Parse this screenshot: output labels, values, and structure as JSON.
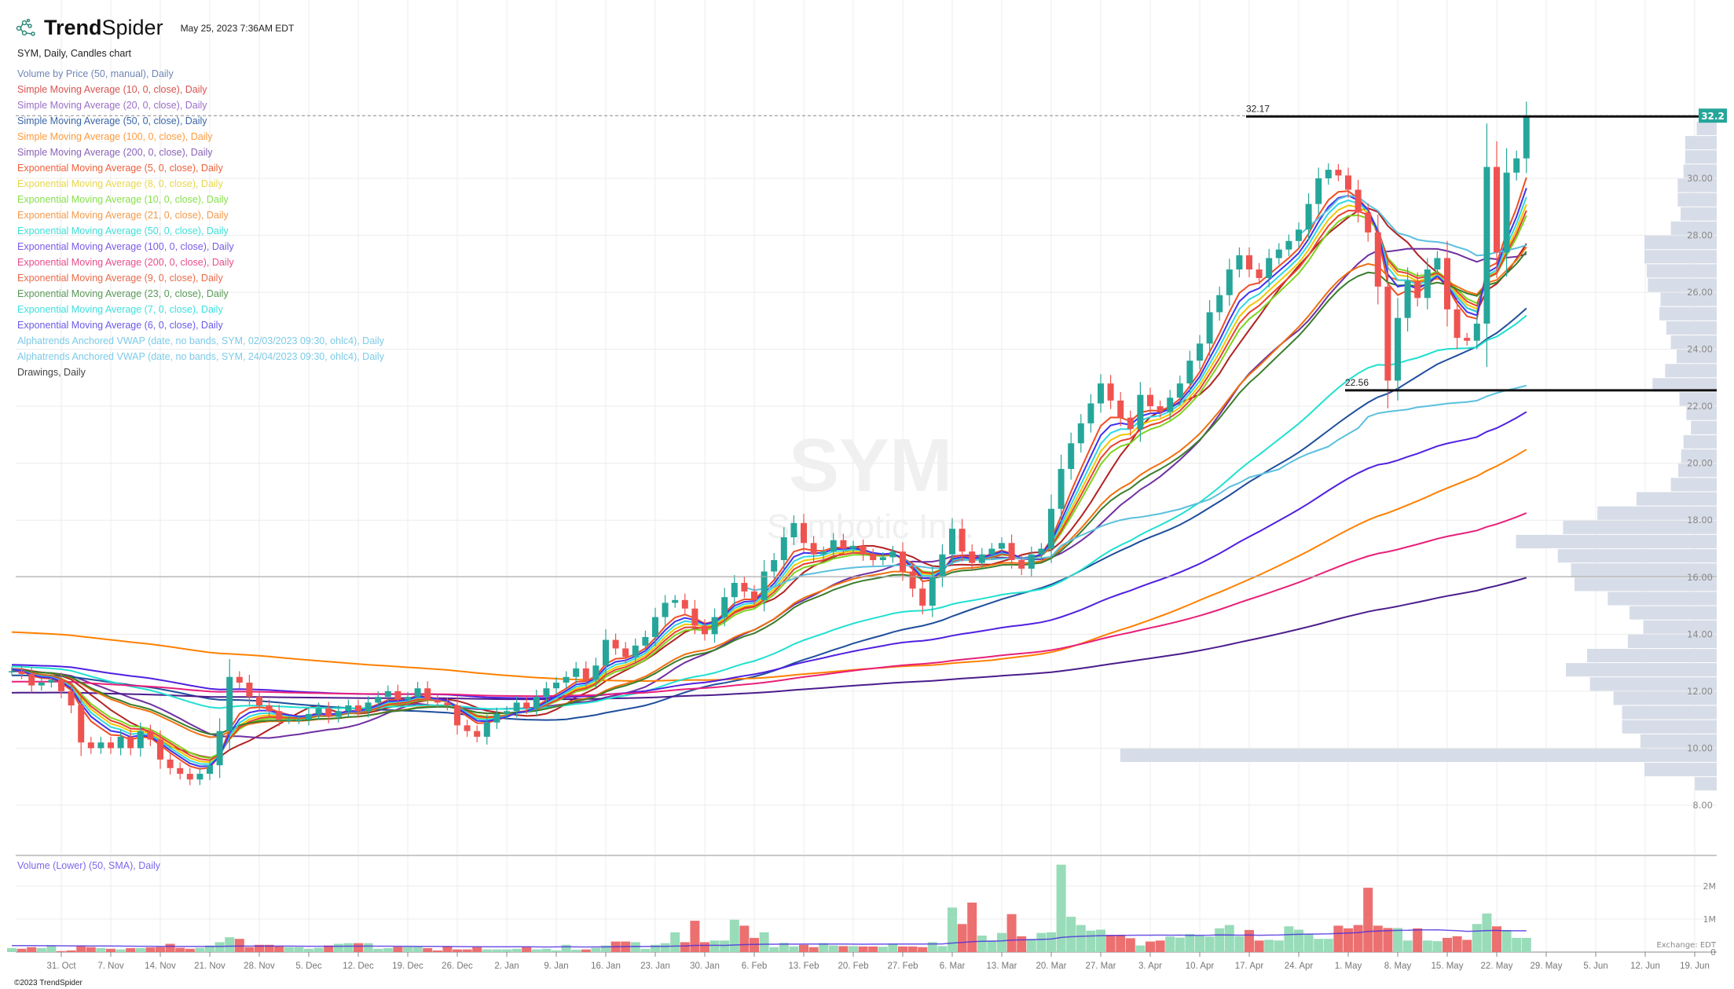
{
  "header": {
    "brand_bold": "Trend",
    "brand_regular": "Spider",
    "timestamp": "May 25, 2023 7:36AM EDT",
    "chart_title": "SYM, Daily, Candles chart"
  },
  "legend": [
    {
      "label": "Volume by Price (50, manual), Daily",
      "color": "#6f86b8"
    },
    {
      "label": "Simple Moving Average (10, 0, close), Daily",
      "color": "#d9534f"
    },
    {
      "label": "Simple Moving Average (20, 0, close), Daily",
      "color": "#9b6fc8"
    },
    {
      "label": "Simple Moving Average (50, 0, close), Daily",
      "color": "#3a66a8"
    },
    {
      "label": "Simple Moving Average (100, 0, close), Daily",
      "color": "#ff9a3c"
    },
    {
      "label": "Simple Moving Average (200, 0, close), Daily",
      "color": "#8a63b8"
    },
    {
      "label": "Exponential Moving Average (5, 0, close), Daily",
      "color": "#f0603a"
    },
    {
      "label": "Exponential Moving Average (8, 0, close), Daily",
      "color": "#e8d84a"
    },
    {
      "label": "Exponential Moving Average (10, 0, close), Daily",
      "color": "#86e04a"
    },
    {
      "label": "Exponential Moving Average (21, 0, close), Daily",
      "color": "#f59a4a"
    },
    {
      "label": "Exponential Moving Average (50, 0, close), Daily",
      "color": "#3ee0d8"
    },
    {
      "label": "Exponential Moving Average (100, 0, close), Daily",
      "color": "#7a5ae8"
    },
    {
      "label": "Exponential Moving Average (200, 0, close), Daily",
      "color": "#ea4c8c"
    },
    {
      "label": "Exponential Moving Average (9, 0, close), Daily",
      "color": "#ec6a4a"
    },
    {
      "label": "Exponential Moving Average (23, 0, close), Daily",
      "color": "#5a9a5a"
    },
    {
      "label": "Exponential Moving Average (7, 0, close), Daily",
      "color": "#3ee0e0"
    },
    {
      "label": "Exponential Moving Average (6, 0, close), Daily",
      "color": "#6a5ae8"
    },
    {
      "label": "Alphatrends Anchored VWAP (date, no bands, SYM, 02/03/2023 09:30, ohlc4), Daily",
      "color": "#7ccbe8"
    },
    {
      "label": "Alphatrends Anchored VWAP (date, no bands, SYM, 24/04/2023 09:30, ohlc4), Daily",
      "color": "#7ccbe8"
    },
    {
      "label": "Drawings, Daily",
      "color": "#444444"
    }
  ],
  "volume_pane": {
    "title": "Volume (Lower) (50, SMA), Daily",
    "ticks": [
      "2M",
      "1M",
      "0"
    ],
    "exchange": "Exchange: EDT"
  },
  "copyright": "©2023 TrendSpider",
  "chart_data": {
    "type": "candlestick",
    "symbol": "SYM",
    "watermark_symbol": "SYM",
    "watermark_name": "Symbotic Inc.",
    "last_price_tag": "32.2",
    "colors": {
      "up": "#26a69a",
      "down": "#ef5350",
      "vol_up": "#98dcb9",
      "vol_down": "#ec7070",
      "tag": "#26a69a",
      "vbp": "#d5dbe7"
    },
    "y_ticks": [
      "30.00",
      "28.00",
      "26.00",
      "24.00",
      "22.00",
      "20.00",
      "18.00",
      "16.00",
      "14.00",
      "12.00",
      "10.00",
      "8.00"
    ],
    "ylim": [
      7,
      33
    ],
    "x_tick_labels": [
      "31. Oct",
      "7. Nov",
      "14. Nov",
      "21. Nov",
      "28. Nov",
      "5. Dec",
      "12. Dec",
      "19. Dec",
      "26. Dec",
      "2. Jan",
      "9. Jan",
      "16. Jan",
      "23. Jan",
      "30. Jan",
      "6. Feb",
      "13. Feb",
      "20. Feb",
      "27. Feb",
      "6. Mar",
      "13. Mar",
      "20. Mar",
      "27. Mar",
      "3. Apr",
      "10. Apr",
      "17. Apr",
      "24. Apr",
      "1. May",
      "8. May",
      "15. May",
      "22. May",
      "29. May",
      "5. Jun",
      "12. Jun",
      "19. Jun"
    ],
    "close": [
      12.7,
      12.6,
      12.2,
      12.3,
      12.4,
      12.0,
      11.5,
      10.2,
      10.0,
      10.2,
      10.0,
      10.4,
      10.0,
      10.6,
      10.3,
      9.6,
      9.3,
      9.1,
      8.9,
      9.1,
      9.4,
      10.6,
      12.5,
      12.3,
      11.8,
      11.5,
      11.3,
      11.0,
      11.0,
      11.0,
      11.2,
      11.4,
      11.1,
      11.3,
      11.5,
      11.3,
      11.6,
      11.8,
      12.0,
      11.7,
      11.8,
      12.1,
      11.7,
      11.6,
      11.5,
      10.8,
      10.6,
      10.4,
      10.9,
      11.2,
      11.3,
      11.6,
      11.4,
      11.8,
      12.1,
      12.3,
      12.5,
      12.8,
      12.4,
      12.9,
      13.8,
      13.5,
      13.2,
      13.6,
      13.9,
      14.6,
      15.1,
      15.2,
      14.9,
      14.3,
      14.0,
      14.6,
      15.3,
      15.8,
      15.5,
      15.2,
      16.2,
      16.6,
      17.4,
      17.9,
      17.2,
      16.8,
      16.9,
      17.3,
      17.0,
      17.1,
      16.8,
      16.6,
      16.7,
      16.9,
      16.2,
      15.6,
      15.0,
      16.0,
      16.8,
      17.7,
      16.9,
      16.5,
      16.8,
      17.0,
      17.2,
      16.6,
      16.3,
      16.8,
      17.0,
      18.4,
      19.8,
      20.7,
      21.4,
      22.1,
      22.8,
      22.2,
      21.6,
      21.2,
      22.4,
      22.0,
      21.8,
      22.3,
      22.8,
      23.6,
      24.2,
      25.3,
      25.9,
      26.8,
      27.3,
      26.8,
      26.5,
      27.2,
      27.5,
      27.8,
      28.2,
      29.1,
      30.0,
      30.3,
      30.1,
      29.6,
      28.8,
      28.1,
      26.2,
      22.9,
      25.1,
      26.4,
      25.8,
      26.8,
      27.2,
      25.4,
      24.4,
      24.3,
      24.9,
      30.4,
      27.4,
      30.2,
      30.7,
      32.17
    ],
    "volume_millions": [
      0.12,
      0.1,
      0.15,
      0.12,
      0.2,
      0.03,
      0.05,
      0.18,
      0.15,
      0.12,
      0.1,
      0.08,
      0.12,
      0.12,
      0.14,
      0.15,
      0.25,
      0.13,
      0.1,
      0.13,
      0.2,
      0.3,
      0.45,
      0.4,
      0.15,
      0.22,
      0.22,
      0.18,
      0.15,
      0.15,
      0.1,
      0.13,
      0.2,
      0.25,
      0.27,
      0.27,
      0.27,
      0.1,
      0.12,
      0.16,
      0.16,
      0.16,
      0.12,
      0.05,
      0.17,
      0.08,
      0.08,
      0.15,
      0.08,
      0.08,
      0.08,
      0.1,
      0.15,
      0.08,
      0.1,
      0.05,
      0.22,
      0.07,
      0.08,
      0.13,
      0.2,
      0.32,
      0.32,
      0.3,
      0.1,
      0.22,
      0.27,
      0.6,
      0.3,
      0.95,
      0.3,
      0.35,
      0.35,
      0.98,
      0.8,
      0.43,
      0.6,
      0.15,
      0.28,
      0.17,
      0.22,
      0.15,
      0.27,
      0.2,
      0.18,
      0.18,
      0.17,
      0.17,
      0.16,
      0.25,
      0.17,
      0.17,
      0.15,
      0.3,
      0.18,
      1.35,
      0.85,
      1.5,
      0.5,
      0.35,
      0.58,
      1.15,
      0.48,
      0.4,
      0.58,
      0.6,
      2.65,
      1.07,
      0.82,
      0.65,
      0.68,
      0.52,
      0.52,
      0.42,
      0.2,
      0.32,
      0.35,
      0.47,
      0.44,
      0.55,
      0.5,
      0.47,
      0.72,
      0.82,
      0.48,
      0.67,
      0.35,
      0.37,
      0.35,
      0.78,
      0.68,
      0.55,
      0.4,
      0.4,
      0.8,
      0.72,
      0.82,
      1.95,
      0.8,
      0.73,
      0.73,
      0.35,
      0.72,
      0.35,
      0.33,
      0.43,
      0.48,
      0.37,
      0.85,
      1.17,
      0.78,
      0.67,
      0.43,
      0.43
    ],
    "indicators": [
      {
        "type": "sma",
        "period": 10,
        "color": "#b22222",
        "initial": 12.8
      },
      {
        "type": "sma",
        "period": 20,
        "color": "#7030a0",
        "initial": 12.7
      },
      {
        "type": "sma",
        "period": 50,
        "color": "#1f4e9c",
        "initial": 12.55
      },
      {
        "type": "sma",
        "period": 100,
        "color": "#ff8000",
        "initial": 14.09
      },
      {
        "type": "sma",
        "period": 200,
        "color": "#4b1c8c",
        "initial": 11.94
      },
      {
        "type": "ema",
        "period": 5,
        "color": "#f04e23",
        "initial": 12.8
      },
      {
        "type": "ema",
        "period": 8,
        "color": "#f0c800",
        "initial": 12.8
      },
      {
        "type": "ema",
        "period": 10,
        "color": "#7ed321",
        "initial": 12.8
      },
      {
        "type": "ema",
        "period": 21,
        "color": "#f07010",
        "initial": 12.75
      },
      {
        "type": "ema",
        "period": 50,
        "color": "#20e0d0",
        "initial": 12.88
      },
      {
        "type": "ema",
        "period": 100,
        "color": "#5020e0",
        "initial": 12.93
      },
      {
        "type": "ema",
        "period": 200,
        "color": "#e8207a",
        "initial": 12.33
      },
      {
        "type": "ema",
        "period": 9,
        "color": "#e84030",
        "initial": 12.8
      },
      {
        "type": "ema",
        "period": 23,
        "color": "#3a7d2c",
        "initial": 12.75
      },
      {
        "type": "ema",
        "period": 7,
        "color": "#30d8e0",
        "initial": 12.8
      },
      {
        "type": "ema",
        "period": 6,
        "color": "#4030f0",
        "initial": 12.8
      },
      {
        "type": "vwap",
        "anchor": "02/03/2023",
        "color": "#5bc0de"
      },
      {
        "type": "vwap",
        "anchor": "24/04/2023",
        "color": "#5bc0de"
      }
    ],
    "volume_sma": {
      "period": 50,
      "color": "#4a2ae0"
    },
    "drawings": [
      {
        "type": "horizontal",
        "price": 32.17,
        "label": "32.17",
        "from": "17. Apr"
      },
      {
        "type": "horizontal",
        "price": 22.56,
        "label": "22.56",
        "from": "1. May"
      },
      {
        "type": "horizontal-line",
        "price": 16.02
      }
    ],
    "volume_by_price": {
      "bucket_size": 0.5,
      "buckets_low_to_high_from": 8.5,
      "relative_volume": [
        38,
        126,
        1040,
        133,
        165,
        165,
        180,
        221,
        263,
        226,
        155,
        128,
        152,
        190,
        248,
        254,
        277,
        350,
        268,
        208,
        140,
        80,
        67,
        62,
        58,
        45,
        53,
        65,
        112,
        90,
        70,
        80,
        88,
        100,
        98,
        120,
        122,
        126,
        126,
        80,
        63,
        68,
        68,
        58,
        55,
        55,
        35
      ]
    }
  }
}
